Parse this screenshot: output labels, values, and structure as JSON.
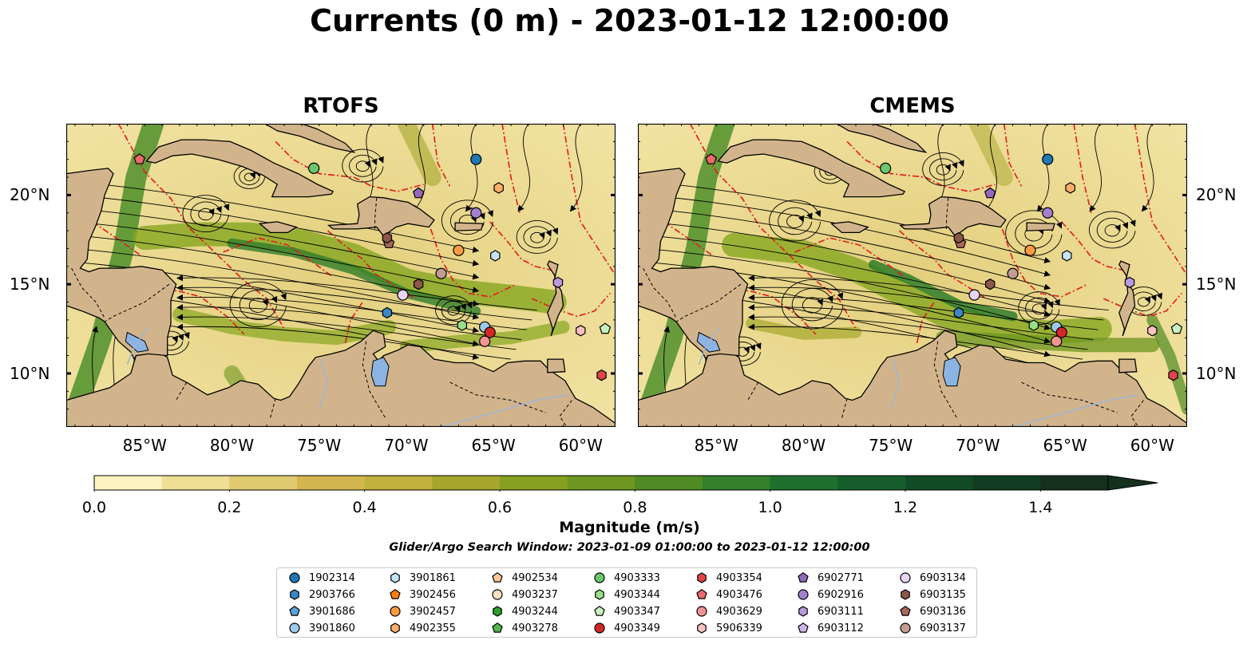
{
  "title": "Currents (0 m) - 2023-01-12 12:00:00",
  "panels": [
    {
      "title": "RTOFS"
    },
    {
      "title": "CMEMS"
    }
  ],
  "axes": {
    "x_ticks": [
      "85°W",
      "80°W",
      "75°W",
      "70°W",
      "65°W",
      "60°W"
    ],
    "y_ticks": [
      "20°N",
      "15°N",
      "10°N"
    ],
    "lon_range": [
      -89.5,
      -58
    ],
    "lat_range": [
      7,
      24
    ],
    "x_tick_values": [
      -85,
      -80,
      -75,
      -70,
      -65,
      -60
    ],
    "y_tick_values": [
      20,
      15,
      10
    ]
  },
  "colorbar": {
    "title": "Magnitude (m/s)",
    "tick_labels": [
      "0.0",
      "0.2",
      "0.4",
      "0.6",
      "0.8",
      "1.0",
      "1.2",
      "1.4"
    ],
    "tick_values": [
      0,
      0.2,
      0.4,
      0.6,
      0.8,
      1.0,
      1.2,
      1.4
    ],
    "range": [
      0,
      1.5
    ],
    "extend": "max",
    "colors": [
      "#fbf4c0",
      "#eedf95",
      "#e0ca70",
      "#d3b650",
      "#c0b03c",
      "#a5a62b",
      "#87a01f",
      "#6c961f",
      "#4f8a24",
      "#34802a",
      "#1f6f2f",
      "#175e2c",
      "#124c27",
      "#123d22",
      "#15301d"
    ]
  },
  "search_window": "Glider/Argo Search Window: 2023-01-09 01:00:00 to 2023-01-12 12:00:00",
  "colors": {
    "land": "#d2b48c",
    "ocean_low": "#f6e8a8",
    "ocean_high": "#2f7d2a",
    "lakes": "#8cb4e2",
    "eez": "#e31a1c"
  },
  "legend": {
    "columns": [
      [
        {
          "id": "1902314",
          "marker": "circle",
          "color": "#1f77b4"
        },
        {
          "id": "2903766",
          "marker": "hexagon",
          "color": "#3a87c6"
        },
        {
          "id": "3901686",
          "marker": "pentagon",
          "color": "#5aa2de"
        },
        {
          "id": "3901860",
          "marker": "circle",
          "color": "#9ecae9"
        }
      ],
      [
        {
          "id": "3901861",
          "marker": "hexagon",
          "color": "#c6e3f7"
        },
        {
          "id": "3902456",
          "marker": "pentagon",
          "color": "#ff7f0e"
        },
        {
          "id": "3902457",
          "marker": "circle",
          "color": "#fd9b3e"
        },
        {
          "id": "4902355",
          "marker": "hexagon",
          "color": "#fdae6b"
        }
      ],
      [
        {
          "id": "4902534",
          "marker": "pentagon",
          "color": "#fdc896"
        },
        {
          "id": "4903237",
          "marker": "circle",
          "color": "#fee0c2"
        },
        {
          "id": "4903244",
          "marker": "hexagon",
          "color": "#2ca02c"
        },
        {
          "id": "4903278",
          "marker": "pentagon",
          "color": "#51b84f"
        }
      ],
      [
        {
          "id": "4903333",
          "marker": "circle",
          "color": "#6cc76a"
        },
        {
          "id": "4903344",
          "marker": "hexagon",
          "color": "#98df8a"
        },
        {
          "id": "4903347",
          "marker": "pentagon",
          "color": "#c7f1c0"
        },
        {
          "id": "4903349",
          "marker": "circle",
          "color": "#d62728"
        }
      ],
      [
        {
          "id": "4903354",
          "marker": "hexagon",
          "color": "#e04547"
        },
        {
          "id": "4903476",
          "marker": "pentagon",
          "color": "#ec6a6c"
        },
        {
          "id": "4903629",
          "marker": "circle",
          "color": "#f39495"
        },
        {
          "id": "5906339",
          "marker": "hexagon",
          "color": "#fbc0c0"
        }
      ],
      [
        {
          "id": "6902771",
          "marker": "pentagon",
          "color": "#9467bd"
        },
        {
          "id": "6902916",
          "marker": "circle",
          "color": "#a47fd0"
        },
        {
          "id": "6903111",
          "marker": "hexagon",
          "color": "#b99ade"
        },
        {
          "id": "6903112",
          "marker": "pentagon",
          "color": "#cdb5ec"
        }
      ],
      [
        {
          "id": "6903134",
          "marker": "circle",
          "color": "#e8d5f8"
        },
        {
          "id": "6903135",
          "marker": "hexagon",
          "color": "#8c564b"
        },
        {
          "id": "6903136",
          "marker": "pentagon",
          "color": "#a8675a"
        },
        {
          "id": "6903137",
          "marker": "circle",
          "color": "#c49c94"
        }
      ]
    ]
  },
  "floats": {
    "rtofs": [
      {
        "id": "4903476",
        "lon": -85.3,
        "lat": 22.0
      },
      {
        "id": "4903333",
        "lon": -75.3,
        "lat": 21.5
      },
      {
        "id": "1902314",
        "lon": -66.0,
        "lat": 22.0
      },
      {
        "id": "6902771",
        "lon": -69.3,
        "lat": 20.1
      },
      {
        "id": "4902355",
        "lon": -64.7,
        "lat": 20.4
      },
      {
        "id": "6902916",
        "lon": -66.0,
        "lat": 19.0
      },
      {
        "id": "6903136",
        "lon": -71.0,
        "lat": 17.3
      },
      {
        "id": "6903135",
        "lon": -71.1,
        "lat": 17.6
      },
      {
        "id": "3902457",
        "lon": -67.0,
        "lat": 16.9
      },
      {
        "id": "3901861",
        "lon": -64.9,
        "lat": 16.6
      },
      {
        "id": "6903137",
        "lon": -68.0,
        "lat": 15.6
      },
      {
        "id": "6903135",
        "lon": -69.3,
        "lat": 15.0
      },
      {
        "id": "6903111",
        "lon": -61.3,
        "lat": 15.1
      },
      {
        "id": "6903134",
        "lon": -70.2,
        "lat": 14.4
      },
      {
        "id": "2903766",
        "lon": -71.1,
        "lat": 13.4
      },
      {
        "id": "4903344",
        "lon": -66.8,
        "lat": 12.7
      },
      {
        "id": "3901860",
        "lon": -65.5,
        "lat": 12.6
      },
      {
        "id": "4903349",
        "lon": -65.2,
        "lat": 12.3
      },
      {
        "id": "4903629",
        "lon": -65.5,
        "lat": 11.8
      },
      {
        "id": "5906339",
        "lon": -60.0,
        "lat": 12.4
      },
      {
        "id": "4903347",
        "lon": -58.6,
        "lat": 12.5
      },
      {
        "id": "4903354",
        "lon": -58.8,
        "lat": 9.9
      }
    ],
    "cmems": [
      {
        "id": "4903476",
        "lon": -85.3,
        "lat": 22.0
      },
      {
        "id": "4903333",
        "lon": -75.3,
        "lat": 21.5
      },
      {
        "id": "1902314",
        "lon": -66.0,
        "lat": 22.0
      },
      {
        "id": "6902771",
        "lon": -69.3,
        "lat": 20.1
      },
      {
        "id": "4902355",
        "lon": -64.7,
        "lat": 20.4
      },
      {
        "id": "6902916",
        "lon": -66.0,
        "lat": 19.0
      },
      {
        "id": "6903136",
        "lon": -71.0,
        "lat": 17.3
      },
      {
        "id": "6903135",
        "lon": -71.1,
        "lat": 17.6
      },
      {
        "id": "3902457",
        "lon": -67.0,
        "lat": 16.9
      },
      {
        "id": "3901861",
        "lon": -64.9,
        "lat": 16.6
      },
      {
        "id": "6903137",
        "lon": -68.0,
        "lat": 15.6
      },
      {
        "id": "6903135",
        "lon": -69.3,
        "lat": 15.0
      },
      {
        "id": "6903111",
        "lon": -61.3,
        "lat": 15.1
      },
      {
        "id": "6903134",
        "lon": -70.2,
        "lat": 14.4
      },
      {
        "id": "2903766",
        "lon": -71.1,
        "lat": 13.4
      },
      {
        "id": "4903344",
        "lon": -66.8,
        "lat": 12.7
      },
      {
        "id": "3901860",
        "lon": -65.5,
        "lat": 12.6
      },
      {
        "id": "4903349",
        "lon": -65.2,
        "lat": 12.3
      },
      {
        "id": "4903629",
        "lon": -65.5,
        "lat": 11.8
      },
      {
        "id": "5906339",
        "lon": -60.0,
        "lat": 12.4
      },
      {
        "id": "4903347",
        "lon": -58.6,
        "lat": 12.5
      },
      {
        "id": "4903354",
        "lon": -58.8,
        "lat": 9.9
      }
    ]
  }
}
